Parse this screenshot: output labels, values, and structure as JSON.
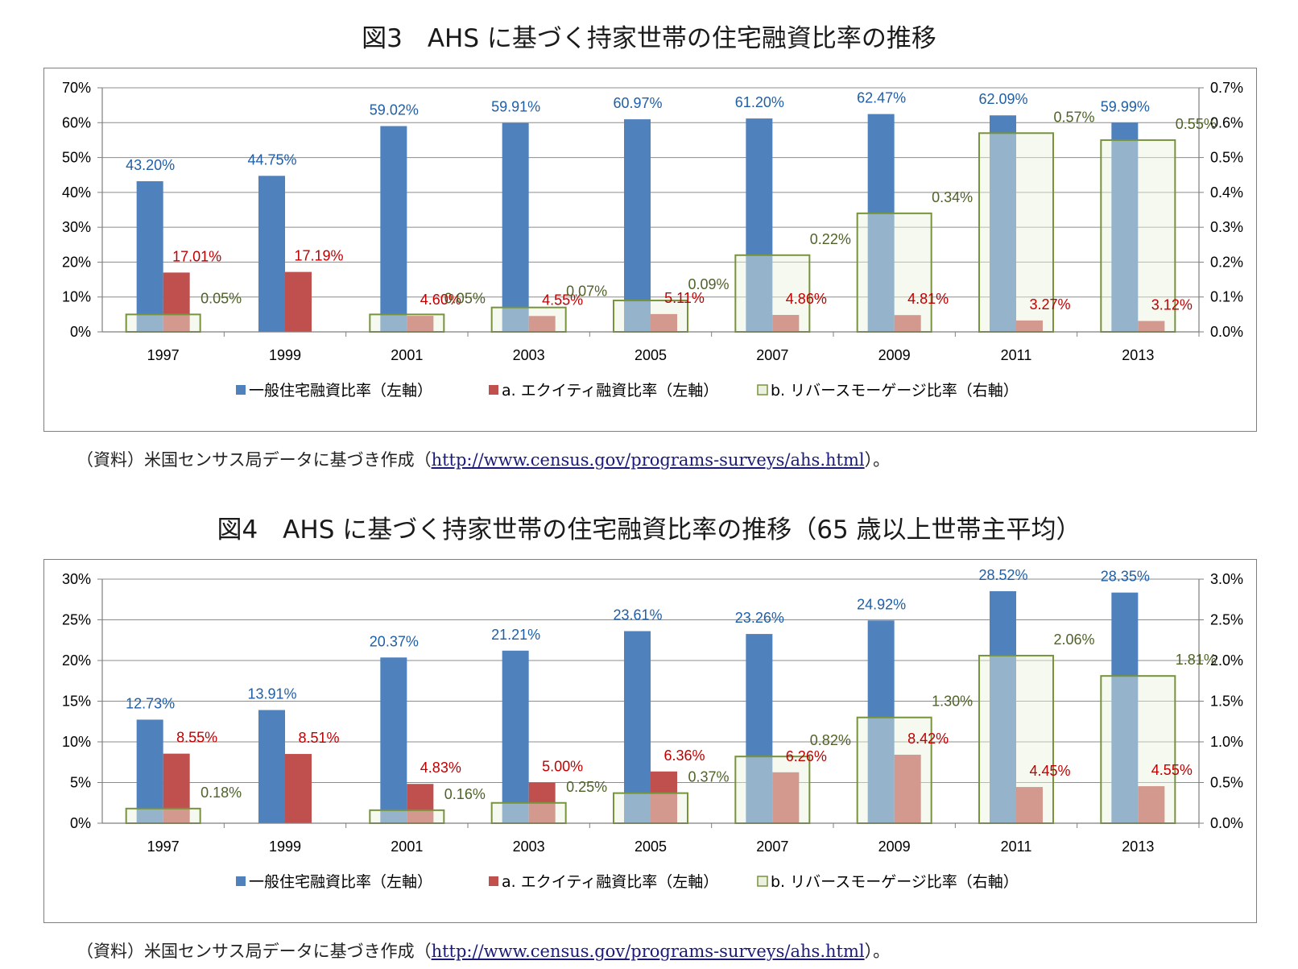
{
  "colors": {
    "general": "#4f81bd",
    "equity": "#c0504d",
    "reverse_fill": "#ebf1de",
    "reverse_stroke": "#77933c",
    "label_general": "#1f5fa8",
    "label_equity": "#c00000",
    "label_reverse": "#4f6228"
  },
  "figures": [
    {
      "title": "図3　AHS に基づく持家世帯の住宅融資比率の推移",
      "source_prefix": "（資料）米国センサス局データに基づき作成（",
      "source_link": "http://www.census.gov/programs-surveys/ahs.html",
      "source_suffix": "）。",
      "legend": [
        "一般住宅融資比率（左軸）",
        "a. エクイティ融資比率（左軸）",
        "b. リバースモーゲージ比率（右軸）"
      ],
      "chart_data": {
        "type": "bar",
        "categories": [
          "1997",
          "1999",
          "2001",
          "2003",
          "2005",
          "2007",
          "2009",
          "2011",
          "2013"
        ],
        "series": [
          {
            "name": "一般住宅融資比率（左軸）",
            "axis": "left",
            "values": [
              43.2,
              44.75,
              59.02,
              59.91,
              60.97,
              61.2,
              62.47,
              62.09,
              59.99
            ],
            "labels": [
              "43.20%",
              "44.75%",
              "59.02%",
              "59.91%",
              "60.97%",
              "61.20%",
              "62.47%",
              "62.09%",
              "59.99%"
            ]
          },
          {
            "name": "a. エクイティ融資比率（左軸）",
            "axis": "left",
            "values": [
              17.01,
              17.19,
              4.6,
              4.55,
              5.11,
              4.86,
              4.81,
              3.27,
              3.12
            ],
            "labels": [
              "17.01%",
              "17.19%",
              "4.60%",
              "4.55%",
              "5.11%",
              "4.86%",
              "4.81%",
              "3.27%",
              "3.12%"
            ]
          },
          {
            "name": "b. リバースモーゲージ比率（右軸）",
            "axis": "right",
            "values": [
              0.05,
              null,
              0.05,
              0.07,
              0.09,
              0.22,
              0.34,
              0.57,
              0.55
            ],
            "labels": [
              "0.05%",
              "",
              "0.05%",
              "0.07%",
              "0.09%",
              "0.22%",
              "0.34%",
              "0.57%",
              "0.55%"
            ]
          }
        ],
        "ylim_left": [
          0,
          70
        ],
        "yticks_left": [
          "0%",
          "10%",
          "20%",
          "30%",
          "40%",
          "50%",
          "60%",
          "70%"
        ],
        "ylim_right": [
          0,
          0.7
        ],
        "yticks_right": [
          "0.0%",
          "0.1%",
          "0.2%",
          "0.3%",
          "0.4%",
          "0.5%",
          "0.6%",
          "0.7%"
        ],
        "grid": true,
        "legend_position": "bottom"
      }
    },
    {
      "title": "図4　AHS に基づく持家世帯の住宅融資比率の推移（65 歳以上世帯主平均）",
      "source_prefix": "（資料）米国センサス局データに基づき作成（",
      "source_link": "http://www.census.gov/programs-surveys/ahs.html",
      "source_suffix": "）。",
      "legend": [
        "一般住宅融資比率（左軸）",
        "a. エクイティ融資比率（左軸）",
        "b. リバースモーゲージ比率（右軸）"
      ],
      "chart_data": {
        "type": "bar",
        "categories": [
          "1997",
          "1999",
          "2001",
          "2003",
          "2005",
          "2007",
          "2009",
          "2011",
          "2013"
        ],
        "series": [
          {
            "name": "一般住宅融資比率（左軸）",
            "axis": "left",
            "values": [
              12.73,
              13.91,
              20.37,
              21.21,
              23.61,
              23.26,
              24.92,
              28.52,
              28.35
            ],
            "labels": [
              "12.73%",
              "13.91%",
              "20.37%",
              "21.21%",
              "23.61%",
              "23.26%",
              "24.92%",
              "28.52%",
              "28.35%"
            ]
          },
          {
            "name": "a. エクイティ融資比率（左軸）",
            "axis": "left",
            "values": [
              8.55,
              8.51,
              4.83,
              5.0,
              6.36,
              6.26,
              8.42,
              4.45,
              4.55
            ],
            "labels": [
              "8.55%",
              "8.51%",
              "4.83%",
              "5.00%",
              "6.36%",
              "6.26%",
              "8.42%",
              "4.45%",
              "4.55%"
            ]
          },
          {
            "name": "b. リバースモーゲージ比率（右軸）",
            "axis": "right",
            "values": [
              0.18,
              null,
              0.16,
              0.25,
              0.37,
              0.82,
              1.3,
              2.06,
              1.81
            ],
            "labels": [
              "0.18%",
              "",
              "0.16%",
              "0.25%",
              "0.37%",
              "0.82%",
              "1.30%",
              "2.06%",
              "1.81%"
            ]
          }
        ],
        "ylim_left": [
          0,
          30
        ],
        "yticks_left": [
          "0%",
          "5%",
          "10%",
          "15%",
          "20%",
          "25%",
          "30%"
        ],
        "ylim_right": [
          0,
          3.0
        ],
        "yticks_right": [
          "0.0%",
          "0.5%",
          "1.0%",
          "1.5%",
          "2.0%",
          "2.5%",
          "3.0%"
        ],
        "grid": true,
        "legend_position": "bottom"
      }
    }
  ]
}
